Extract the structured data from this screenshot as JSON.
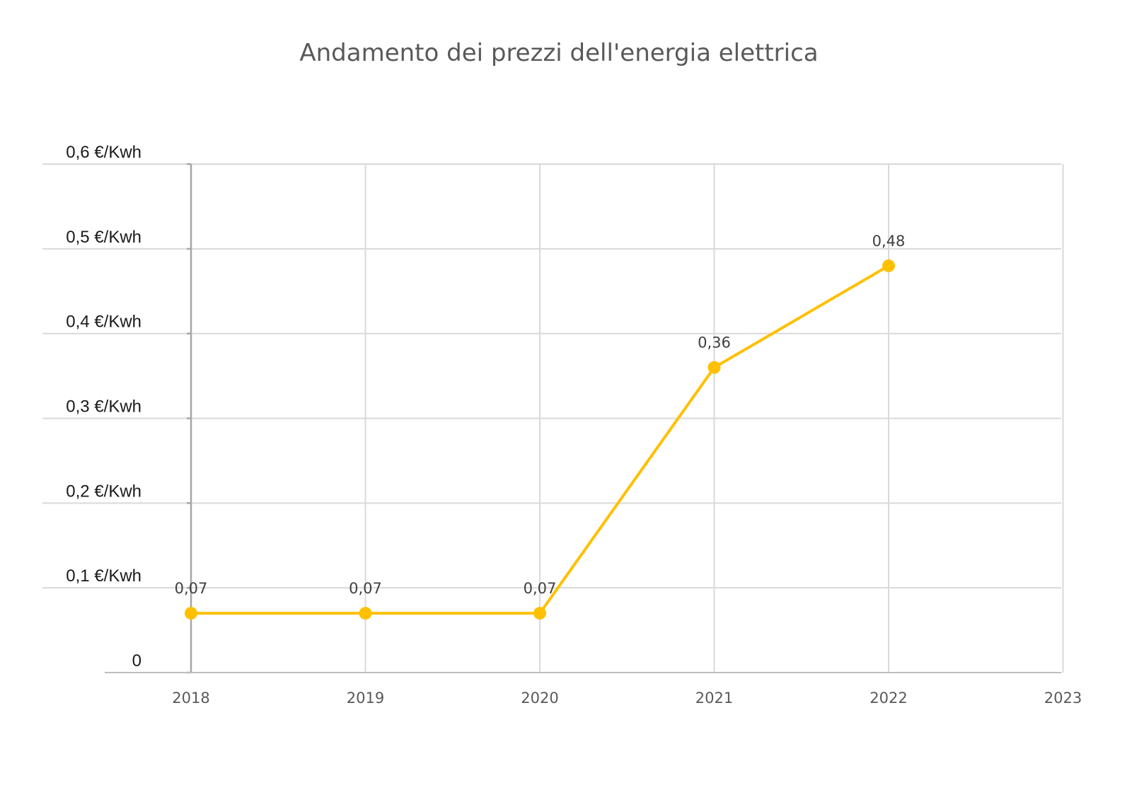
{
  "chart_data": {
    "type": "line",
    "title": "Andamento dei prezzi dell'energia elettrica",
    "xlabel": "",
    "ylabel": "",
    "categories": [
      "2018",
      "2019",
      "2020",
      "2021",
      "2022",
      "2023"
    ],
    "series": [
      {
        "values": [
          0.07,
          0.07,
          0.07,
          0.36,
          0.48,
          null
        ],
        "data_labels": [
          "0,07",
          "0,07",
          "0,07",
          "0,36",
          "0,48",
          ""
        ],
        "color": "#FFC000"
      }
    ],
    "y_ticks": [
      {
        "value": 0,
        "label": "0"
      },
      {
        "value": 0.1,
        "label": "0,1  €/Kwh"
      },
      {
        "value": 0.2,
        "label": "0,2 €/Kwh"
      },
      {
        "value": 0.3,
        "label": "0,3 €/Kwh"
      },
      {
        "value": 0.4,
        "label": "0,4 €/Kwh"
      },
      {
        "value": 0.5,
        "label": "0,5 €/Kwh"
      },
      {
        "value": 0.6,
        "label": "0,6 €/Kwh"
      }
    ],
    "ylim": [
      0,
      0.6
    ],
    "grid": true,
    "legend": "none"
  }
}
